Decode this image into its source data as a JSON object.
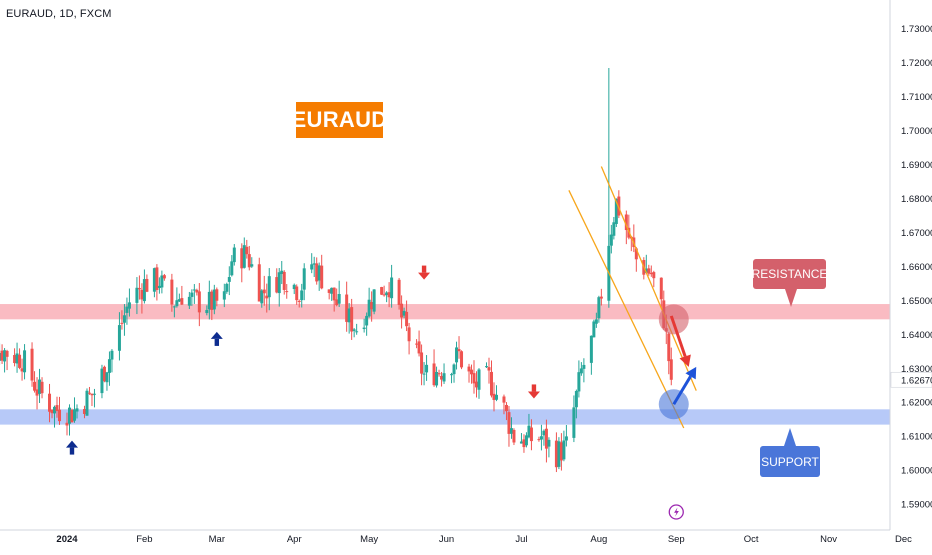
{
  "header": {
    "symbol_line": "EURAUD, 1D, FXCM"
  },
  "badges": {
    "title": "EURAUD"
  },
  "annotations": {
    "resistance_label": "RESISTANCE",
    "support_label": "SUPPORT"
  },
  "colors": {
    "up": "#26a69a",
    "down": "#ef5350",
    "resistance_zone": "#f8a4ad",
    "support_zone": "#9fb7f5",
    "channel": "#f7a61b",
    "title_badge": "#f57c00",
    "resistance_callout": "#d4606b",
    "support_callout": "#4a76d9",
    "arrow_up": "#0d2c8f",
    "arrow_down": "#e53935"
  },
  "icons": {
    "down_marker": "red-down-arrow-icon",
    "up_marker": "navy-up-arrow-icon",
    "event": "lightning-icon"
  },
  "chart_data": {
    "type": "candlestick",
    "title": "EURAUD, 1D, FXCM",
    "ylim": [
      1.586,
      1.735
    ],
    "y_ticks": [
      "1.73000",
      "1.72000",
      "1.71000",
      "1.70000",
      "1.69000",
      "1.68000",
      "1.67000",
      "1.66000",
      "1.65000",
      "1.64000",
      "1.63000",
      "1.62000",
      "1.61000",
      "1.60000",
      "1.59000"
    ],
    "last_price_label": "1.62670",
    "last_price": 1.6267,
    "x_ticks": [
      {
        "label": "2024",
        "bold": true,
        "date": "2024-01-01"
      },
      {
        "label": "Feb",
        "bold": false,
        "date": "2024-02-01"
      },
      {
        "label": "Mar",
        "bold": false,
        "date": "2024-03-01"
      },
      {
        "label": "Apr",
        "bold": false,
        "date": "2024-04-01"
      },
      {
        "label": "May",
        "bold": false,
        "date": "2024-05-01"
      },
      {
        "label": "Jun",
        "bold": false,
        "date": "2024-06-01"
      },
      {
        "label": "Jul",
        "bold": false,
        "date": "2024-07-01"
      },
      {
        "label": "Aug",
        "bold": false,
        "date": "2024-08-01"
      },
      {
        "label": "Sep",
        "bold": false,
        "date": "2024-09-01"
      },
      {
        "label": "Oct",
        "bold": false,
        "date": "2024-10-01"
      },
      {
        "label": "Nov",
        "bold": false,
        "date": "2024-11-01"
      },
      {
        "label": "Dec",
        "bold": false,
        "date": "2024-12-01"
      }
    ],
    "path_dates": [
      "2023-11-24",
      "2023-11-30",
      "2023-12-07",
      "2023-12-14",
      "2023-12-20",
      "2023-12-27",
      "2024-01-03",
      "2024-01-12",
      "2024-01-19",
      "2024-01-26",
      "2024-02-01",
      "2024-02-07",
      "2024-02-12",
      "2024-02-16",
      "2024-02-21",
      "2024-02-27",
      "2024-03-04",
      "2024-03-07",
      "2024-03-13",
      "2024-03-19",
      "2024-03-27",
      "2024-04-03",
      "2024-04-08",
      "2024-04-12",
      "2024-04-19",
      "2024-04-26",
      "2024-05-03",
      "2024-05-09",
      "2024-05-17",
      "2024-05-23",
      "2024-05-31",
      "2024-06-06",
      "2024-06-12",
      "2024-06-18",
      "2024-06-24",
      "2024-06-28",
      "2024-07-03",
      "2024-07-09",
      "2024-07-15",
      "2024-07-19",
      "2024-07-25",
      "2024-07-31",
      "2024-08-05",
      "2024-08-08",
      "2024-08-12",
      "2024-08-16",
      "2024-08-22",
      "2024-08-27",
      "2024-08-30"
    ],
    "path_closes": [
      1.648,
      1.636,
      1.635,
      1.633,
      1.624,
      1.618,
      1.617,
      1.623,
      1.635,
      1.65,
      1.655,
      1.656,
      1.649,
      1.652,
      1.65,
      1.649,
      1.65,
      1.662,
      1.664,
      1.652,
      1.658,
      1.653,
      1.661,
      1.657,
      1.648,
      1.642,
      1.652,
      1.655,
      1.639,
      1.628,
      1.63,
      1.634,
      1.625,
      1.627,
      1.618,
      1.61,
      1.609,
      1.61,
      1.605,
      1.607,
      1.629,
      1.642,
      1.668,
      1.679,
      1.671,
      1.662,
      1.658,
      1.645,
      1.6267
    ],
    "spike": {
      "date": "2024-08-05",
      "high": 1.7185,
      "low": 1.6585
    },
    "resistance_zone": [
      1.6445,
      1.649
    ],
    "support_zone": [
      1.6135,
      1.618
    ],
    "channel_upper": [
      {
        "date": "2024-08-02",
        "price": 1.6895
      },
      {
        "date": "2024-09-09",
        "price": 1.6235
      }
    ],
    "channel_lower": [
      {
        "date": "2024-07-20",
        "price": 1.6825
      },
      {
        "date": "2024-09-04",
        "price": 1.6125
      }
    ],
    "markers": [
      {
        "kind": "down",
        "date": "2023-11-27",
        "price": 1.6565
      },
      {
        "kind": "up",
        "date": "2024-01-03",
        "price": 1.6085
      },
      {
        "kind": "up",
        "date": "2024-03-01",
        "price": 1.6405
      },
      {
        "kind": "down",
        "date": "2024-05-23",
        "price": 1.6565
      },
      {
        "kind": "down",
        "date": "2024-07-06",
        "price": 1.6215
      }
    ],
    "circles": [
      {
        "color": "resistance",
        "date": "2024-08-31",
        "price": 1.6445
      },
      {
        "color": "support",
        "date": "2024-08-31",
        "price": 1.6195
      }
    ],
    "projections": [
      {
        "color": "up",
        "from_date": "2024-08-31",
        "from_price": 1.6195,
        "to_date": "2024-09-09",
        "to_price": 1.6305
      },
      {
        "color": "down",
        "from_date": "2024-08-30",
        "from_price": 1.6455,
        "to_date": "2024-09-06",
        "to_price": 1.6305
      }
    ],
    "event_marker": {
      "date": "2024-09-01"
    }
  }
}
